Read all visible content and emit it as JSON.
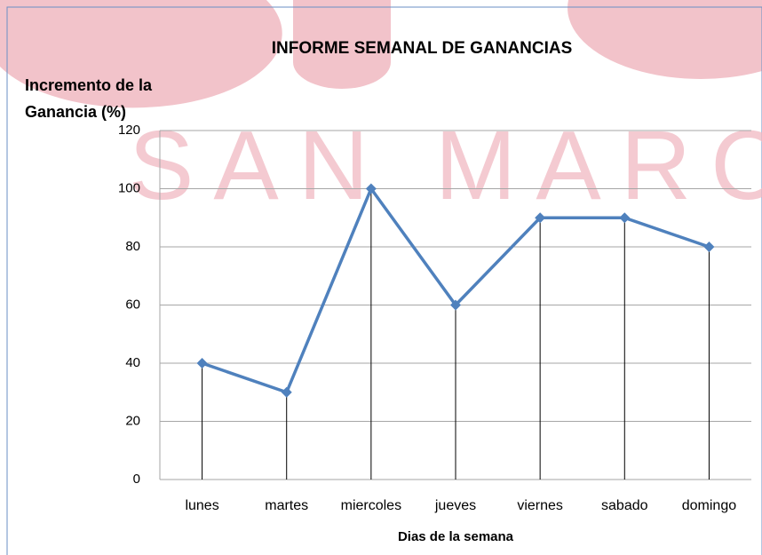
{
  "chart_data": {
    "type": "line",
    "title": "INFORME SEMANAL DE GANANCIAS",
    "ylabel": [
      "Incremento de la",
      "Ganancia (%)"
    ],
    "xlabel": "Dias de la semana",
    "watermark": "SAN MARC",
    "categories": [
      "lunes",
      "martes",
      "miercoles",
      "jueves",
      "viernes",
      "sabado",
      "domingo"
    ],
    "values": [
      40,
      30,
      100,
      60,
      90,
      90,
      80
    ],
    "color": "#4f81bd",
    "ylim": [
      0,
      120
    ],
    "yticks": [
      0,
      20,
      40,
      60,
      80,
      100,
      120
    ],
    "grid": true,
    "drop_lines": true
  }
}
